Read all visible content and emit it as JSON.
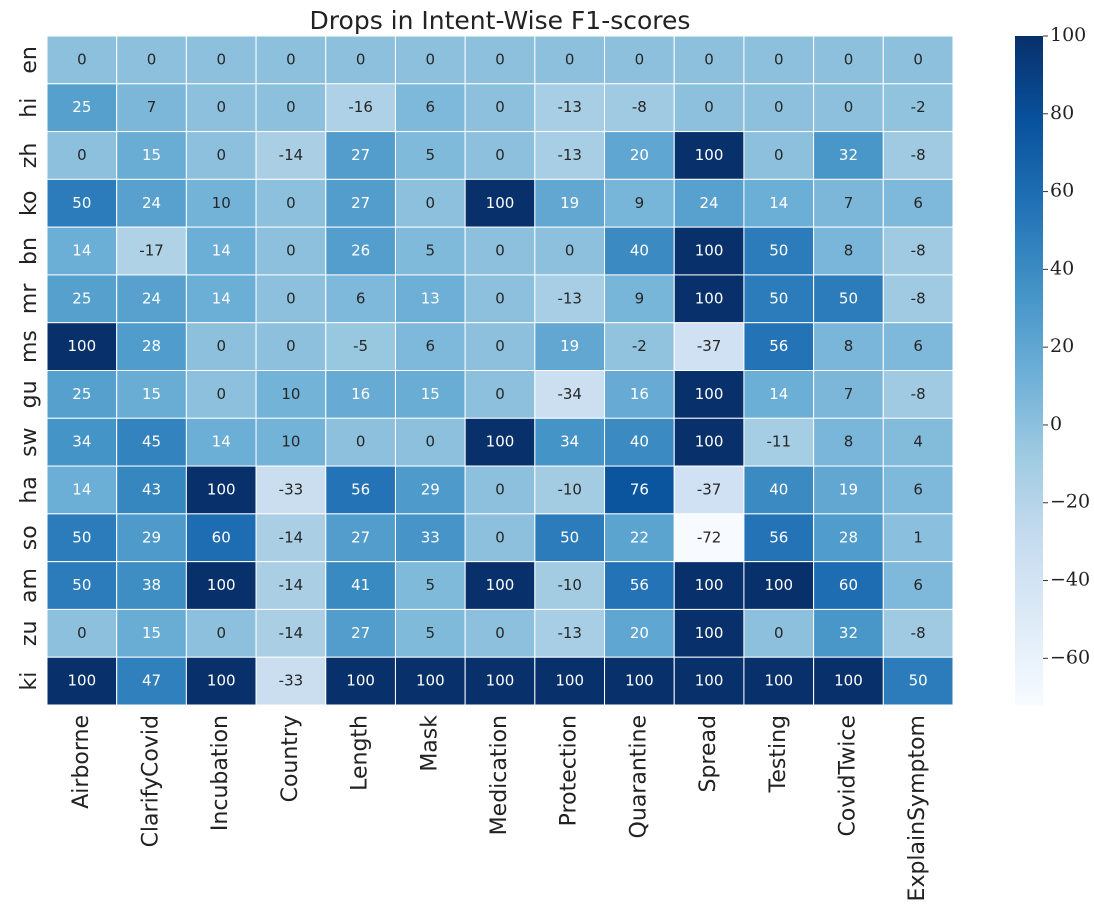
{
  "chart_data": {
    "type": "heatmap",
    "title": "Drops in Intent-Wise F1-scores",
    "columns": [
      "Airborne",
      "ClarifyCovid",
      "Incubation",
      "Country",
      "Length",
      "Mask",
      "Medication",
      "Protection",
      "Quarantine",
      "Spread",
      "Testing",
      "CovidTwice",
      "ExplainSymptom"
    ],
    "rows": [
      "en",
      "hi",
      "zh",
      "ko",
      "bn",
      "mr",
      "ms",
      "gu",
      "sw",
      "ha",
      "so",
      "am",
      "zu",
      "ki"
    ],
    "values": [
      [
        0,
        0,
        0,
        0,
        0,
        0,
        0,
        0,
        0,
        0,
        0,
        0,
        0
      ],
      [
        25,
        7,
        0,
        0,
        -16,
        6,
        0,
        -13,
        -8,
        0,
        0,
        0,
        -2
      ],
      [
        0,
        15,
        0,
        -14,
        27,
        5,
        0,
        -13,
        20,
        100,
        0,
        32,
        -8
      ],
      [
        50,
        24,
        10,
        0,
        27,
        0,
        100,
        19,
        9,
        24,
        14,
        7,
        6
      ],
      [
        14,
        -17,
        14,
        0,
        26,
        5,
        0,
        0,
        40,
        100,
        50,
        8,
        -8
      ],
      [
        25,
        24,
        14,
        0,
        6,
        13,
        0,
        -13,
        9,
        100,
        50,
        50,
        -8
      ],
      [
        100,
        28,
        0,
        0,
        -5,
        6,
        0,
        19,
        -2,
        -37,
        56,
        8,
        6
      ],
      [
        25,
        15,
        0,
        10,
        16,
        15,
        0,
        -34,
        16,
        100,
        14,
        7,
        -8
      ],
      [
        34,
        45,
        14,
        10,
        0,
        0,
        100,
        34,
        40,
        100,
        -11,
        8,
        4
      ],
      [
        14,
        43,
        100,
        -33,
        56,
        29,
        0,
        -10,
        76,
        -37,
        40,
        19,
        6
      ],
      [
        50,
        29,
        60,
        -14,
        27,
        33,
        0,
        50,
        22,
        -72,
        56,
        28,
        1
      ],
      [
        50,
        38,
        100,
        -14,
        41,
        5,
        100,
        -10,
        56,
        100,
        100,
        60,
        6
      ],
      [
        0,
        15,
        0,
        -14,
        27,
        5,
        0,
        -13,
        20,
        100,
        0,
        32,
        -8
      ],
      [
        100,
        47,
        100,
        -33,
        100,
        100,
        100,
        100,
        100,
        100,
        100,
        100,
        50
      ]
    ],
    "colormap": "Blues",
    "clim": [
      -72,
      100
    ],
    "cticks": [
      {
        "value": -60,
        "label": "−60"
      },
      {
        "value": -40,
        "label": "−40"
      },
      {
        "value": -20,
        "label": "−20"
      },
      0,
      20,
      40,
      60,
      80,
      100
    ]
  }
}
